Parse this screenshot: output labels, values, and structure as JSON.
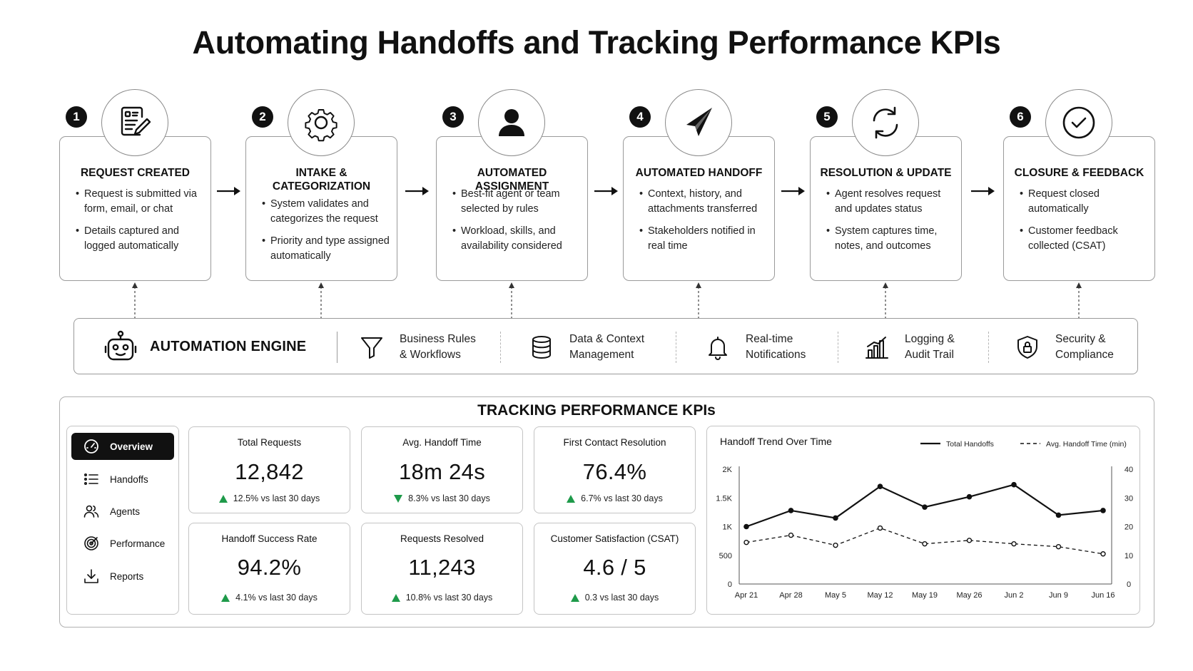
{
  "title": "Automating Handoffs and Tracking Performance KPIs",
  "steps": [
    {
      "number": "1",
      "icon": "document-edit-icon",
      "title": "REQUEST CREATED",
      "bullets": [
        "Request is submitted via form, email, or chat",
        "Details captured and logged automatically"
      ]
    },
    {
      "number": "2",
      "icon": "gear-icon",
      "title": "INTAKE & CATEGORIZATION",
      "bullets": [
        "System validates and categorizes the request",
        "Priority and type assigned automatically"
      ]
    },
    {
      "number": "3",
      "icon": "user-icon",
      "title": "AUTOMATED ASSIGNMENT",
      "bullets": [
        "Best-fit agent or team selected by rules",
        "Workload, skills, and availability considered"
      ]
    },
    {
      "number": "4",
      "icon": "paper-plane-icon",
      "title": "AUTOMATED HANDOFF",
      "bullets": [
        "Context, history, and attachments transferred",
        "Stakeholders notified in real time"
      ]
    },
    {
      "number": "5",
      "icon": "refresh-icon",
      "title": "RESOLUTION & UPDATE",
      "bullets": [
        "Agent resolves request and updates status",
        "System captures time, notes, and outcomes"
      ]
    },
    {
      "number": "6",
      "icon": "check-circle-icon",
      "title": "CLOSURE & FEEDBACK",
      "bullets": [
        "Request closed automatically",
        "Customer feedback collected (CSAT)"
      ]
    }
  ],
  "engine": {
    "title": "AUTOMATION ENGINE",
    "icon": "robot-icon",
    "items": [
      {
        "icon": "funnel-icon",
        "line1": "Business Rules",
        "line2": "& Workflows"
      },
      {
        "icon": "database-icon",
        "line1": "Data & Context",
        "line2": "Management"
      },
      {
        "icon": "bell-icon",
        "line1": "Real-time",
        "line2": "Notifications"
      },
      {
        "icon": "bar-chart-icon",
        "line1": "Logging &",
        "line2": "Audit Trail"
      },
      {
        "icon": "shield-lock-icon",
        "line1": "Security &",
        "line2": "Compliance"
      }
    ]
  },
  "kpi": {
    "heading": "TRACKING PERFORMANCE KPIs",
    "nav": [
      {
        "label": "Overview",
        "icon": "gauge-icon",
        "active": true
      },
      {
        "label": "Handoffs",
        "icon": "list-icon",
        "active": false
      },
      {
        "label": "Agents",
        "icon": "users-icon",
        "active": false
      },
      {
        "label": "Performance",
        "icon": "target-icon",
        "active": false
      },
      {
        "label": "Reports",
        "icon": "download-icon",
        "active": false
      }
    ],
    "cards": [
      {
        "label": "Total Requests",
        "value": "12,842",
        "delta": "12.5% vs last 30 days",
        "direction": "up"
      },
      {
        "label": "Avg. Handoff Time",
        "value": "18m 24s",
        "delta": "8.3% vs last 30 days",
        "direction": "down"
      },
      {
        "label": "First Contact Resolution",
        "value": "76.4%",
        "delta": "6.7% vs last 30 days",
        "direction": "up"
      },
      {
        "label": "Handoff Success Rate",
        "value": "94.2%",
        "delta": "4.1% vs last 30 days",
        "direction": "up"
      },
      {
        "label": "Requests Resolved",
        "value": "11,243",
        "delta": "10.8% vs last 30 days",
        "direction": "up"
      },
      {
        "label": "Customer Satisfaction (CSAT)",
        "value": "4.6 / 5",
        "delta": "0.3 vs last 30 days",
        "direction": "up"
      }
    ],
    "accent_color": "#1e9a4a"
  },
  "chart_data": {
    "type": "line",
    "title": "Handoff Trend Over Time",
    "categories": [
      "Apr 21",
      "Apr 28",
      "May 5",
      "May 12",
      "May 19",
      "May 26",
      "Jun 2",
      "Jun 9",
      "Jun 16"
    ],
    "series": [
      {
        "name": "Total Handoffs",
        "axis": "left",
        "style": "solid",
        "values": [
          1000,
          1280,
          1150,
          1700,
          1340,
          1520,
          1730,
          1200,
          1280
        ]
      },
      {
        "name": "Avg. Handoff Time (min)",
        "axis": "right",
        "style": "dashed",
        "values": [
          14.5,
          17,
          13.5,
          19.5,
          14,
          15.2,
          14,
          13,
          10.5
        ]
      }
    ],
    "yleft_ticks": [
      "0",
      "500",
      "1K",
      "1.5K",
      "2K"
    ],
    "yleft_lim": [
      0,
      2000
    ],
    "yright_ticks": [
      "0",
      "10",
      "20",
      "30",
      "40"
    ],
    "yright_lim": [
      0,
      40
    ],
    "legend": "top-right"
  }
}
